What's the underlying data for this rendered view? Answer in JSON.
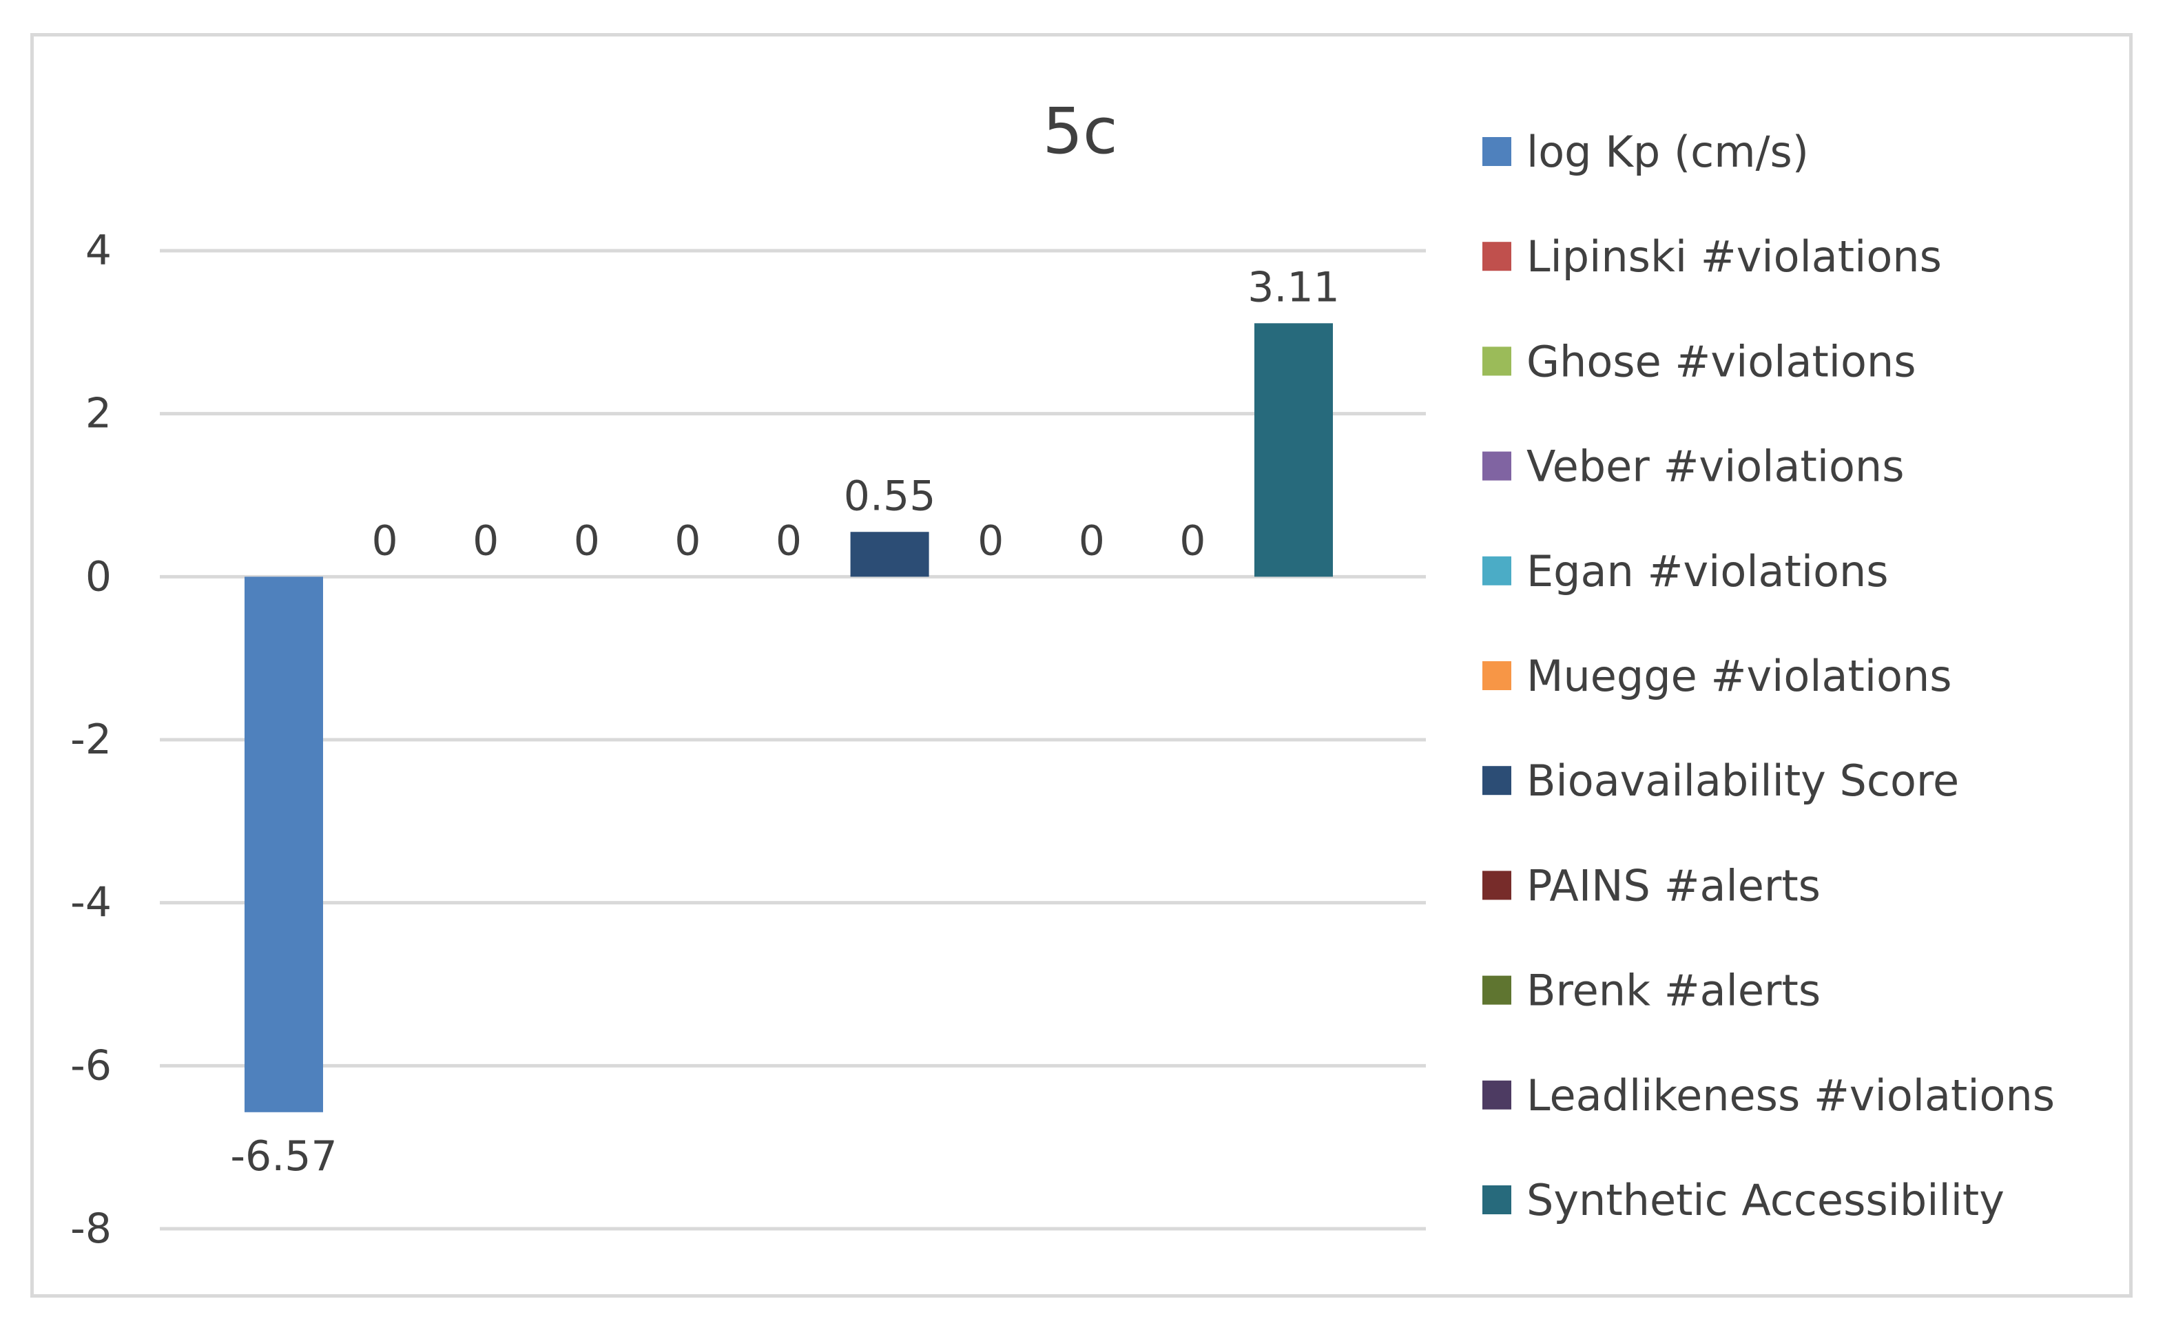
{
  "chart_data": {
    "type": "bar",
    "title": "5c",
    "xlabel": "",
    "ylabel": "",
    "ylim": [
      -8,
      4
    ],
    "yticks": [
      "4",
      "2",
      "0",
      "-2",
      "-4",
      "-6",
      "-8"
    ],
    "grid": true,
    "legend_position": "right",
    "series": [
      {
        "name": "log Kp (cm/s)",
        "value": -6.57,
        "label": "-6.57",
        "color": "#4f81bd"
      },
      {
        "name": "Lipinski #violations",
        "value": 0,
        "label": "0",
        "color": "#c0504d"
      },
      {
        "name": "Ghose #violations",
        "value": 0,
        "label": "0",
        "color": "#9bbb59"
      },
      {
        "name": "Veber #violations",
        "value": 0,
        "label": "0",
        "color": "#8064a2"
      },
      {
        "name": "Egan #violations",
        "value": 0,
        "label": "0",
        "color": "#4bacc6"
      },
      {
        "name": "Muegge #violations",
        "value": 0,
        "label": "0",
        "color": "#f79646"
      },
      {
        "name": "Bioavailability Score",
        "value": 0.55,
        "label": "0.55",
        "color": "#2c4d75"
      },
      {
        "name": "PAINS #alerts",
        "value": 0,
        "label": "0",
        "color": "#772c2a"
      },
      {
        "name": "Brenk #alerts",
        "value": 0,
        "label": "0",
        "color": "#5f7530"
      },
      {
        "name": "Leadlikeness #violations",
        "value": 0,
        "label": "0",
        "color": "#4d3b62"
      },
      {
        "name": "Synthetic Accessibility",
        "value": 3.11,
        "label": "3.11",
        "color": "#276a7c"
      }
    ]
  }
}
